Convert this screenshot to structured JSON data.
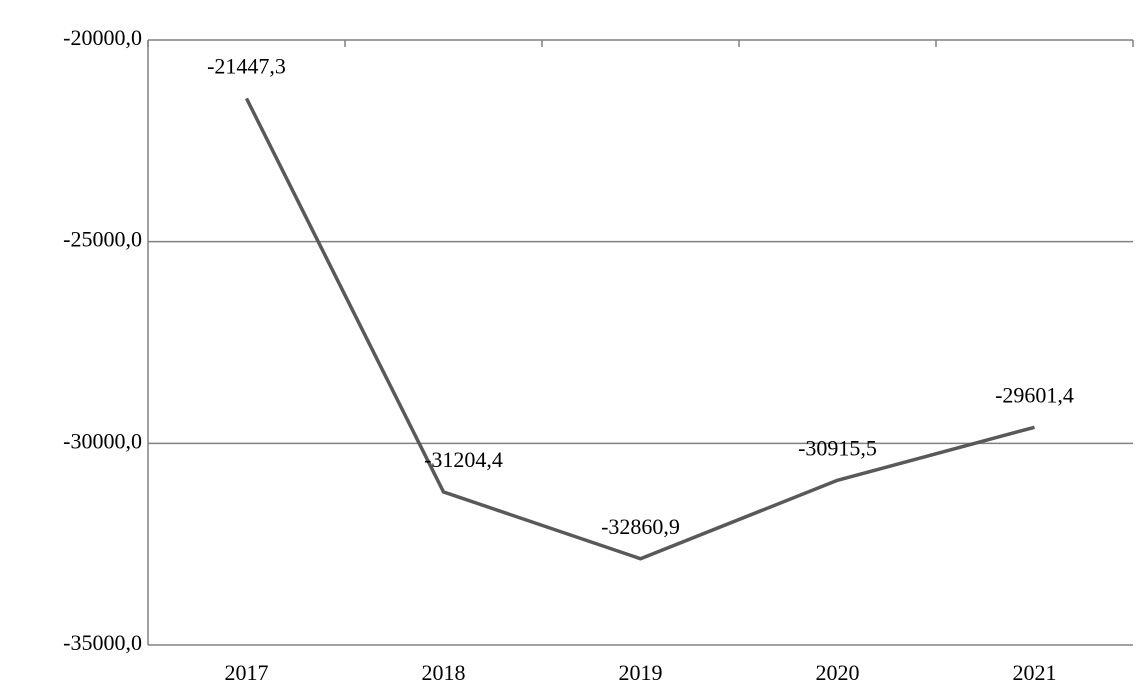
{
  "chart_data": {
    "type": "line",
    "categories": [
      "2017",
      "2018",
      "2019",
      "2020",
      "2021"
    ],
    "series": [
      {
        "color": "#595959",
        "values": [
          -21447.3,
          -31204.4,
          -32860.9,
          -30915.5,
          -29601.4
        ],
        "value_labels": [
          "-21447,3",
          "-31204,4",
          "-32860,9",
          "-30915,5",
          "-29601,4"
        ]
      }
    ],
    "ylim": [
      -35000,
      -20000
    ],
    "yticks": [
      {
        "value": -35000,
        "label": "-35000,0"
      },
      {
        "value": -30000,
        "label": "-30000,0"
      },
      {
        "value": -25000,
        "label": "-25000,0"
      },
      {
        "value": -20000,
        "label": "-20000,0"
      }
    ],
    "grid": true
  }
}
